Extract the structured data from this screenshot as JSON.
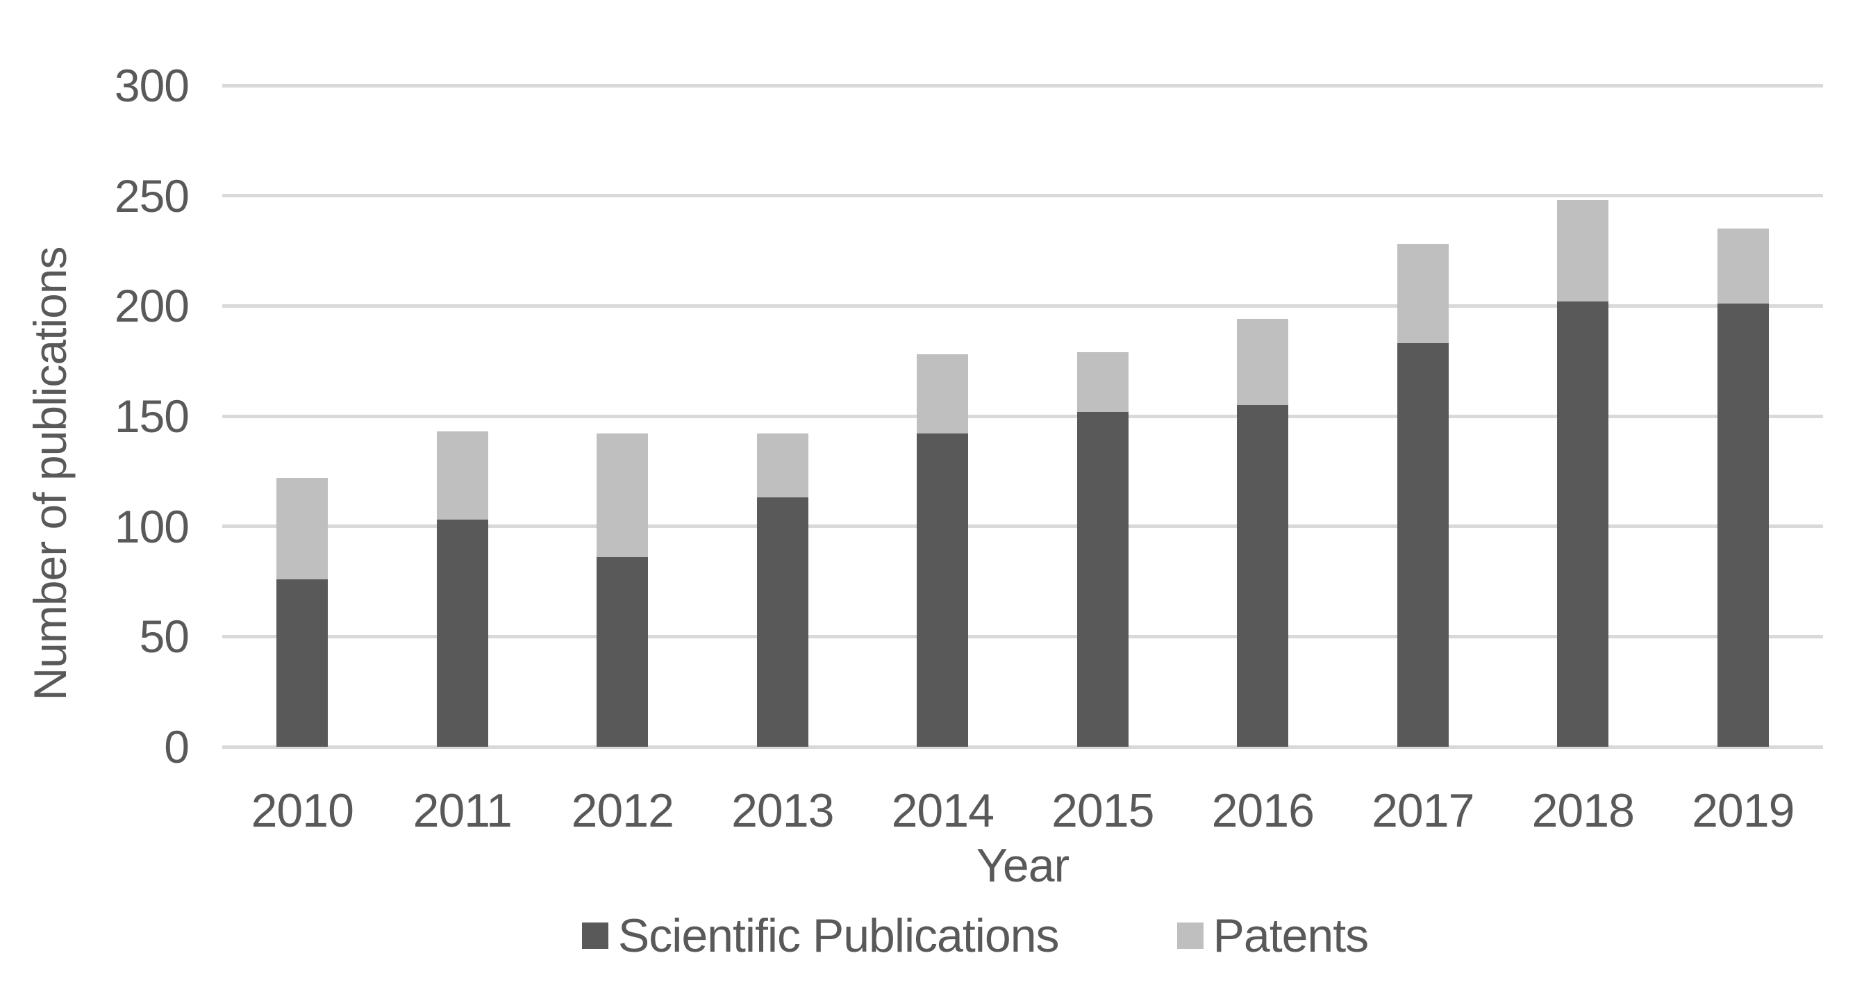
{
  "chart_data": {
    "type": "bar",
    "stacked": true,
    "title": "",
    "xlabel": "Year",
    "ylabel": "Number of publications",
    "categories": [
      "2010",
      "2011",
      "2012",
      "2013",
      "2014",
      "2015",
      "2016",
      "2017",
      "2018",
      "2019"
    ],
    "series": [
      {
        "name": "Scientific Publications",
        "color": "#595959",
        "values": [
          76,
          103,
          86,
          113,
          142,
          152,
          155,
          183,
          202,
          201
        ]
      },
      {
        "name": "Patents",
        "color": "#bfbfbf",
        "values": [
          46,
          40,
          56,
          29,
          36,
          27,
          39,
          45,
          46,
          34
        ]
      }
    ],
    "ylim": [
      0,
      300
    ],
    "yticks": [
      0,
      50,
      100,
      150,
      200,
      250,
      300
    ],
    "grid": "horizontal",
    "gridline_color": "#d9d9d9",
    "text_color": "#595959",
    "background": "#ffffff",
    "legend_position": "bottom",
    "bar_gap_ratio": 0.68
  }
}
